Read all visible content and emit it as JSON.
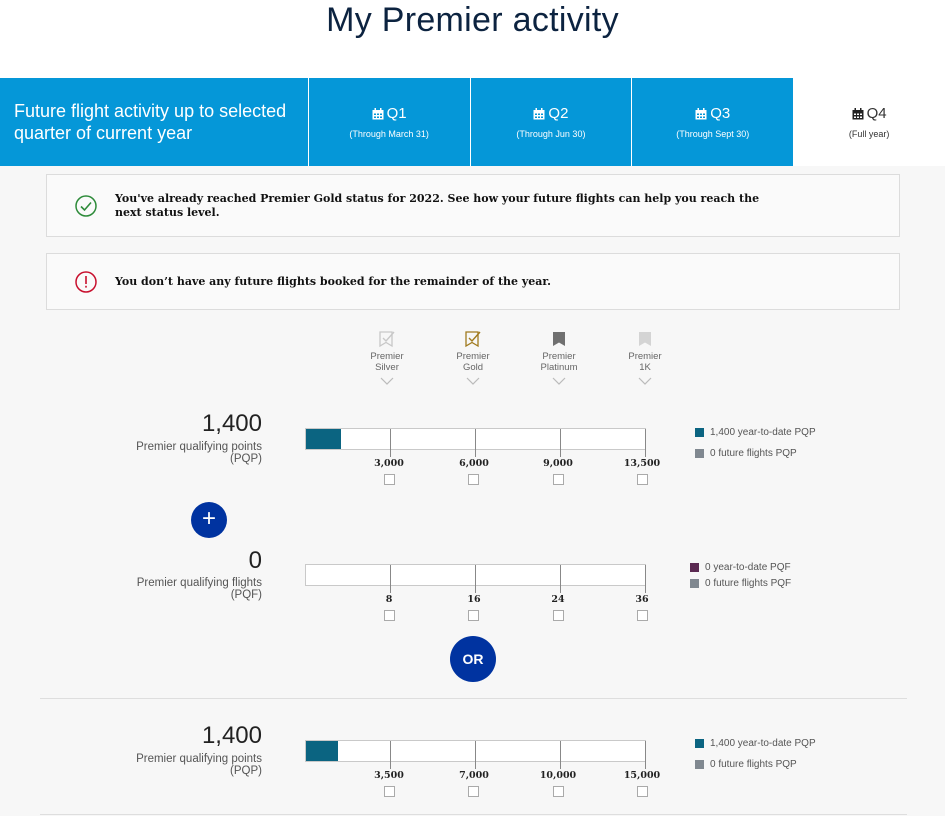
{
  "page": {
    "title": "My Premier activity"
  },
  "tabs": {
    "intro": "Future flight activity up to selected quarter of current year",
    "items": [
      {
        "label": "Q1",
        "sub": "(Through March 31)",
        "icon": "calendar-icon",
        "active": false
      },
      {
        "label": "Q2",
        "sub": "(Through Jun 30)",
        "icon": "calendar-icon",
        "active": false
      },
      {
        "label": "Q3",
        "sub": "(Through Sept 30)",
        "icon": "calendar-icon",
        "active": false
      },
      {
        "label": "Q4",
        "sub": "(Full year)",
        "icon": "calendar-icon",
        "active": true
      }
    ]
  },
  "alerts": {
    "success": {
      "icon": "check-circle-icon",
      "text": "You've already reached Premier Gold status for 2022. See how your future flights can help you reach the next status level."
    },
    "warning": {
      "icon": "exclamation-circle-icon",
      "text": "You don’t have any future flights booked for the remainder of the year."
    }
  },
  "tiers": [
    {
      "line1": "Premier",
      "line2": "Silver",
      "icon": "silver-badge-icon"
    },
    {
      "line1": "Premier",
      "line2": "Gold",
      "icon": "gold-badge-icon"
    },
    {
      "line1": "Premier",
      "line2": "Platinum",
      "icon": "platinum-badge-icon"
    },
    {
      "line1": "Premier",
      "line2": "1K",
      "icon": "1k-badge-icon"
    }
  ],
  "metrics": {
    "pqp": {
      "value": "1,400",
      "label_line1": "Premier qualifying points",
      "label_line2": "(PQP)",
      "progress_fraction": 0.1037,
      "ticks": [
        "3,000",
        "6,000",
        "9,000",
        "13,500"
      ],
      "legend": [
        "1,400 year-to-date PQP",
        "0 future flights PQP"
      ]
    },
    "pqf": {
      "value": "0",
      "label_line1": "Premier qualifying flights",
      "label_line2": "(PQF)",
      "progress_fraction": 0,
      "ticks": [
        "8",
        "16",
        "24",
        "36"
      ],
      "legend": [
        "0 year-to-date PQF",
        "0 future flights PQF"
      ]
    },
    "pqp_alt": {
      "value": "1,400",
      "label_line1": "Premier qualifying points",
      "label_line2": "(PQP)",
      "progress_fraction": 0.0933,
      "ticks": [
        "3,500",
        "7,000",
        "10,000",
        "15,000"
      ],
      "legend": [
        "1,400 year-to-date PQP",
        "0 future flights PQP"
      ]
    }
  },
  "buttons": {
    "plus": "+",
    "or": "OR"
  },
  "colors": {
    "tab_blue": "#0597d8",
    "navy": "#0033a0",
    "pqp_fill": "#0b6481",
    "pqf_legend": "#5b2a52",
    "future_legend": "#808890",
    "success_green": "#2e8b3a",
    "alert_red": "#c8102e"
  }
}
